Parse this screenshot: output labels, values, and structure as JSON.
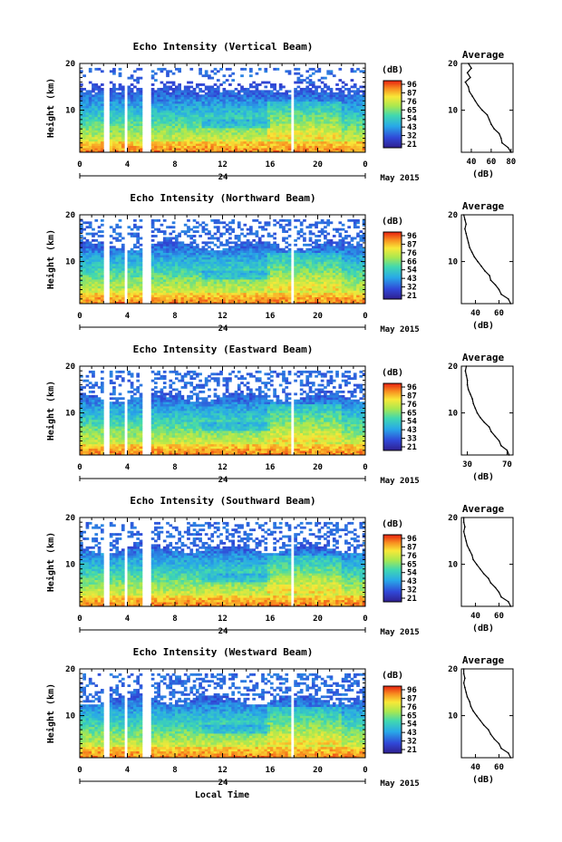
{
  "chart_data": [
    {
      "type": "heatmap",
      "title": "Echo Intensity (Vertical Beam)",
      "ylabel": "Height (km)",
      "xticks": [
        "0",
        "4",
        "8",
        "12",
        "16",
        "20",
        "0"
      ],
      "yticks": [
        "10",
        "20"
      ],
      "x_range": [
        0,
        24
      ],
      "y_range": [
        1,
        20
      ],
      "date_label": "24",
      "month_label": "May 2015",
      "colorbar": {
        "unit": "(dB)",
        "ticks": [
          "96",
          "87",
          "76",
          "65",
          "54",
          "43",
          "32",
          "21"
        ]
      },
      "average_profile": {
        "title": "Average",
        "xlabel": "(dB)",
        "xticks": [
          "40",
          "60",
          "80"
        ],
        "xlim": [
          30,
          82
        ],
        "yticks": [
          "10",
          "20"
        ],
        "heights": [
          1,
          2,
          3,
          4,
          5,
          6,
          7,
          8,
          9,
          10,
          11,
          12,
          13,
          14,
          15,
          16,
          17,
          18,
          19,
          20
        ],
        "values": [
          80,
          77,
          71,
          70,
          68,
          63,
          60,
          58,
          56,
          51,
          47,
          44,
          41,
          38,
          37,
          34,
          39,
          36,
          40,
          37
        ]
      }
    },
    {
      "type": "heatmap",
      "title": "Echo Intensity (Northward Beam)",
      "ylabel": "Height (km)",
      "xticks": [
        "0",
        "4",
        "8",
        "12",
        "16",
        "20",
        "0"
      ],
      "yticks": [
        "10",
        "20"
      ],
      "x_range": [
        0,
        24
      ],
      "y_range": [
        1,
        20
      ],
      "date_label": "24",
      "month_label": "May 2015",
      "colorbar": {
        "unit": "(dB)",
        "ticks": [
          "96",
          "87",
          "76",
          "66",
          "54",
          "43",
          "32",
          "21"
        ]
      },
      "average_profile": {
        "title": "Average",
        "xlabel": "(dB)",
        "xticks": [
          "40",
          "60"
        ],
        "xlim": [
          28,
          72
        ],
        "yticks": [
          "10",
          "20"
        ],
        "heights": [
          1,
          2,
          3,
          4,
          5,
          6,
          7,
          8,
          9,
          10,
          11,
          12,
          13,
          14,
          15,
          16,
          17,
          18,
          19,
          20
        ],
        "values": [
          70,
          68,
          62,
          60,
          57,
          53,
          52,
          48,
          45,
          42,
          39,
          37,
          35,
          34,
          33,
          32,
          31,
          32,
          31,
          30
        ]
      }
    },
    {
      "type": "heatmap",
      "title": "Echo Intensity (Eastward Beam)",
      "ylabel": "Height (km)",
      "xticks": [
        "0",
        "4",
        "8",
        "12",
        "16",
        "20",
        "0"
      ],
      "yticks": [
        "10",
        "20"
      ],
      "x_range": [
        0,
        24
      ],
      "y_range": [
        1,
        20
      ],
      "date_label": "24",
      "month_label": "May 2015",
      "colorbar": {
        "unit": "(dB)",
        "ticks": [
          "96",
          "87",
          "76",
          "65",
          "54",
          "43",
          "33",
          "21"
        ]
      },
      "average_profile": {
        "title": "Average",
        "xlabel": "(dB)",
        "xticks": [
          "30",
          "70"
        ],
        "xlim": [
          24,
          76
        ],
        "yticks": [
          "10",
          "20"
        ],
        "heights": [
          1,
          2,
          3,
          4,
          5,
          6,
          7,
          8,
          9,
          10,
          11,
          12,
          13,
          14,
          15,
          16,
          17,
          18,
          19,
          20
        ],
        "values": [
          72,
          70,
          64,
          62,
          58,
          54,
          52,
          47,
          43,
          40,
          38,
          36,
          35,
          33,
          31,
          30,
          30,
          29,
          28,
          29
        ]
      }
    },
    {
      "type": "heatmap",
      "title": "Echo Intensity (Southward Beam)",
      "ylabel": "Height (km)",
      "xticks": [
        "0",
        "4",
        "8",
        "12",
        "16",
        "20",
        "0"
      ],
      "yticks": [
        "10",
        "20"
      ],
      "x_range": [
        0,
        24
      ],
      "y_range": [
        1,
        20
      ],
      "date_label": "24",
      "month_label": "May 2015",
      "colorbar": {
        "unit": "(dB)",
        "ticks": [
          "96",
          "87",
          "76",
          "65",
          "54",
          "43",
          "32",
          "21"
        ]
      },
      "average_profile": {
        "title": "Average",
        "xlabel": "(dB)",
        "xticks": [
          "40",
          "60"
        ],
        "xlim": [
          28,
          72
        ],
        "yticks": [
          "10",
          "20"
        ],
        "heights": [
          1,
          2,
          3,
          4,
          5,
          6,
          7,
          8,
          9,
          10,
          11,
          12,
          13,
          14,
          15,
          16,
          17,
          18,
          19,
          20
        ],
        "values": [
          70,
          68,
          62,
          60,
          57,
          53,
          51,
          47,
          44,
          41,
          38,
          37,
          35,
          33,
          32,
          31,
          30,
          31,
          30,
          30
        ]
      }
    },
    {
      "type": "heatmap",
      "title": "Echo Intensity (Westward Beam)",
      "ylabel": "Height (km)",
      "xticks": [
        "0",
        "4",
        "8",
        "12",
        "16",
        "20",
        "0"
      ],
      "yticks": [
        "10",
        "20"
      ],
      "x_range": [
        0,
        24
      ],
      "y_range": [
        1,
        20
      ],
      "date_label": "24",
      "month_label": "May 2015",
      "xlabel": "Local Time",
      "colorbar": {
        "unit": "(dB)",
        "ticks": [
          "96",
          "87",
          "76",
          "65",
          "54",
          "43",
          "32",
          "21"
        ]
      },
      "average_profile": {
        "title": "Average",
        "xlabel": "(dB)",
        "xticks": [
          "40",
          "60"
        ],
        "xlim": [
          28,
          72
        ],
        "yticks": [
          "10",
          "20"
        ],
        "heights": [
          1,
          2,
          3,
          4,
          5,
          6,
          7,
          8,
          9,
          10,
          11,
          12,
          13,
          14,
          15,
          16,
          17,
          18,
          19,
          20
        ],
        "values": [
          70,
          68,
          62,
          60,
          56,
          53,
          51,
          47,
          44,
          41,
          38,
          36,
          35,
          33,
          32,
          31,
          30,
          31,
          30,
          30
        ]
      }
    }
  ]
}
